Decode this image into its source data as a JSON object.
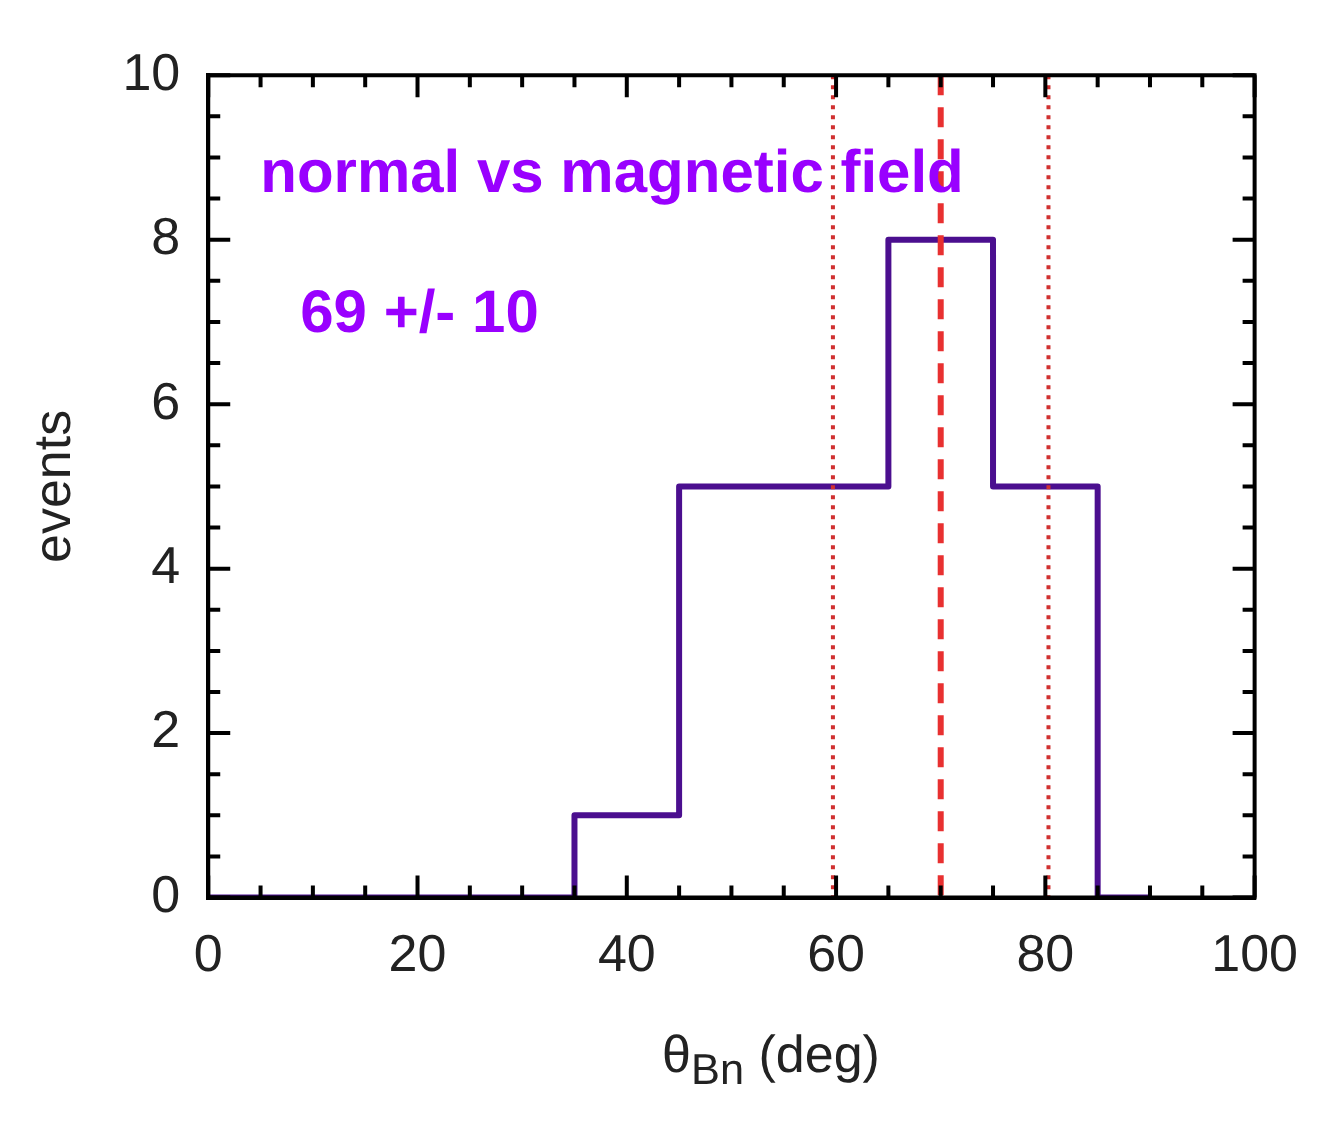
{
  "chart_data": {
    "type": "histogram",
    "xlabel": "θ$_{Bn}$ (deg)",
    "ylabel": "events",
    "annotations": [
      "normal vs magnetic field",
      "69 +/- 10"
    ],
    "bins": [
      0,
      5,
      15,
      25,
      35,
      45,
      55,
      65,
      75,
      85,
      90
    ],
    "values": [
      0,
      0,
      0,
      0,
      1,
      5,
      5,
      8,
      5,
      0
    ],
    "color": "#4b0f8f",
    "xlim": [
      0,
      100
    ],
    "xticks": [
      0,
      {
        "value": 5,
        "label": null
      },
      {
        "value": 10,
        "label": null
      },
      {
        "value": 15,
        "label": null
      },
      20,
      {
        "value": 25,
        "label": null
      },
      {
        "value": 30,
        "label": null
      },
      {
        "value": 35,
        "label": null
      },
      40,
      {
        "value": 45,
        "label": null
      },
      {
        "value": 50,
        "label": null
      },
      {
        "value": 55,
        "label": null
      },
      60,
      {
        "value": 65,
        "label": null
      },
      {
        "value": 70,
        "label": null
      },
      {
        "value": 75,
        "label": null
      },
      80,
      {
        "value": 85,
        "label": null
      },
      {
        "value": 90,
        "label": null
      },
      {
        "value": 95,
        "label": null
      },
      100
    ],
    "ylim": [
      0,
      10
    ],
    "yticks": [
      0,
      {
        "value": 0.5,
        "label": null
      },
      {
        "value": 1,
        "label": null
      },
      {
        "value": 1.5,
        "label": null
      },
      2,
      {
        "value": 2.5,
        "label": null
      },
      {
        "value": 3,
        "label": null
      },
      {
        "value": 3.5,
        "label": null
      },
      4,
      {
        "value": 4.5,
        "label": null
      },
      {
        "value": 5,
        "label": null
      },
      {
        "value": 5.5,
        "label": null
      },
      6,
      {
        "value": 6.5,
        "label": null
      },
      {
        "value": 7,
        "label": null
      },
      {
        "value": 7.5,
        "label": null
      },
      8,
      {
        "value": 8.5,
        "label": null
      },
      {
        "value": 9,
        "label": null
      },
      {
        "value": 9.5,
        "label": null
      },
      10
    ],
    "ref_lines": [
      {
        "axis": "x",
        "value": 59.7,
        "color": "#d03030",
        "line_style": "dotted"
      },
      {
        "axis": "x",
        "value": 70,
        "color": "#e83030",
        "line_style": "dashed"
      },
      {
        "axis": "x",
        "value": 80.3,
        "color": "#d03030",
        "line_style": "dotted"
      }
    ],
    "grid": false,
    "legend": false
  }
}
